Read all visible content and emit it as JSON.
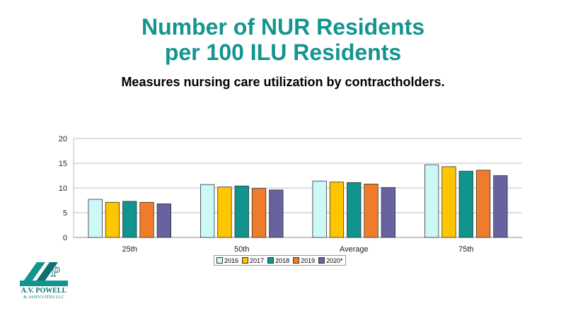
{
  "title_line1": "Number of NUR Residents",
  "title_line2": "per 100 ILU Residents",
  "subtitle": "Measures nursing care utilization by contractholders.",
  "logo": {
    "name": "A.V. POWELL",
    "sub": "& ASSOCIATES LLC",
    "letters": "AVP"
  },
  "colors": {
    "title": "#13958f",
    "series": [
      "#ccf8f8",
      "#fec501",
      "#11948d",
      "#f07c2b",
      "#68629f"
    ],
    "grid": "#bfbfbf"
  },
  "chart_data": {
    "type": "bar",
    "categories": [
      "25th",
      "50th",
      "Average",
      "75th"
    ],
    "series": [
      {
        "name": "2016",
        "values": [
          7.7,
          10.7,
          11.4,
          14.7
        ]
      },
      {
        "name": "2017",
        "values": [
          7.1,
          10.2,
          11.2,
          14.3
        ]
      },
      {
        "name": "2018",
        "values": [
          7.3,
          10.4,
          11.1,
          13.4
        ]
      },
      {
        "name": "2019",
        "values": [
          7.1,
          9.9,
          10.8,
          13.6
        ]
      },
      {
        "name": "2020*",
        "values": [
          6.8,
          9.6,
          10.1,
          12.5
        ]
      }
    ],
    "ylim": [
      0,
      20
    ],
    "yticks": [
      0,
      5,
      10,
      15,
      20
    ],
    "grid": true,
    "legend": "bottom-center"
  }
}
